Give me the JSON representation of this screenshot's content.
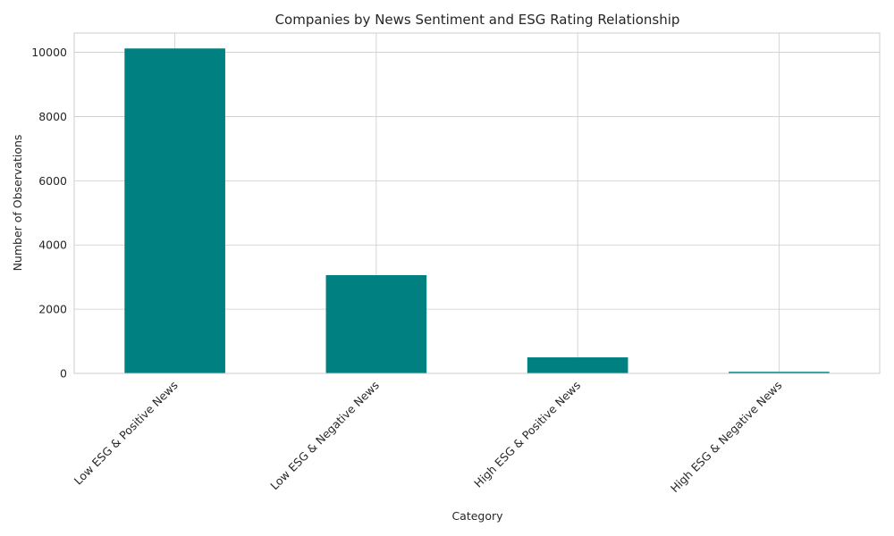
{
  "chart_data": {
    "type": "bar",
    "title": "Companies by News Sentiment and ESG Rating Relationship",
    "xlabel": "Category",
    "ylabel": "Number of Observations",
    "categories": [
      "Low ESG & Positive News",
      "Low ESG & Negative News",
      "High ESG & Positive News",
      "High ESG & Negative News"
    ],
    "values": [
      10120,
      3060,
      500,
      50
    ],
    "ylim": [
      0,
      10600
    ],
    "yticks": [
      0,
      2000,
      4000,
      6000,
      8000,
      10000
    ],
    "bar_color": "#008080",
    "grid": true,
    "legend": "none"
  }
}
